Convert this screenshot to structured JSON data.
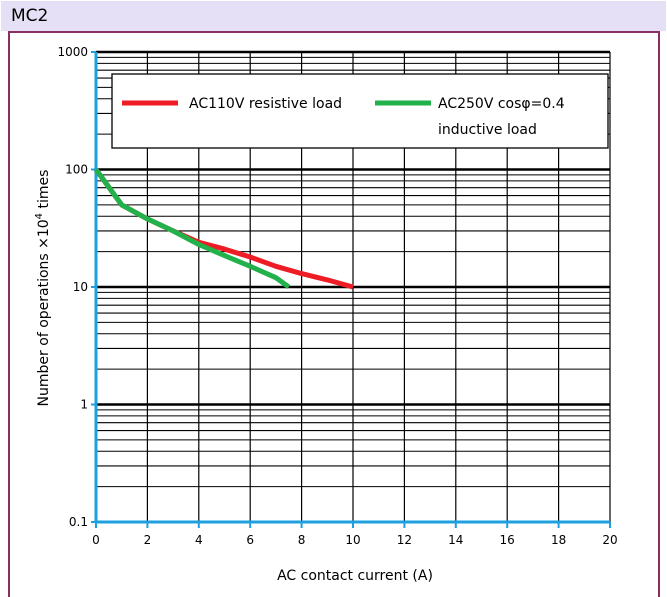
{
  "panel_label": "MC2",
  "colors": {
    "title_bg": "#e6e0f6",
    "panel_border": "#8b2e62",
    "axis": "#1ea0e0",
    "series_red": "#ee1c24",
    "series_green": "#22b24c"
  },
  "chart_data": {
    "type": "line",
    "title": "",
    "xlabel": "AC contact current (A)",
    "ylabel_prefix": "Number of operations ×10",
    "ylabel_exp": "4",
    "ylabel_suffix": "  times",
    "xlim": [
      0,
      20
    ],
    "ylim": [
      0.1,
      1000
    ],
    "yscale": "log",
    "grid": true,
    "legend_position": "top",
    "x_ticks": [
      "0",
      "2",
      "4",
      "6",
      "8",
      "10",
      "12",
      "14",
      "16",
      "18",
      "20"
    ],
    "y_ticks": [
      "0.1",
      "1",
      "10",
      "100",
      "1000"
    ],
    "series": [
      {
        "name": "AC110V resistive load",
        "color": "#ee1c24",
        "points": [
          [
            0,
            100
          ],
          [
            1,
            50
          ],
          [
            2,
            38
          ],
          [
            3,
            30
          ],
          [
            4,
            24
          ],
          [
            5,
            21
          ],
          [
            6,
            18
          ],
          [
            7,
            15
          ],
          [
            8,
            13
          ],
          [
            9,
            11.5
          ],
          [
            10,
            10
          ]
        ]
      },
      {
        "name_line1": "AC250V cosφ=0.4",
        "name_line2": "inductive load",
        "color": "#22b24c",
        "points": [
          [
            0,
            100
          ],
          [
            1,
            50
          ],
          [
            2,
            38
          ],
          [
            3,
            30
          ],
          [
            4,
            23
          ],
          [
            5,
            18.5
          ],
          [
            6,
            15
          ],
          [
            7,
            12
          ],
          [
            7.5,
            10
          ]
        ]
      }
    ]
  }
}
